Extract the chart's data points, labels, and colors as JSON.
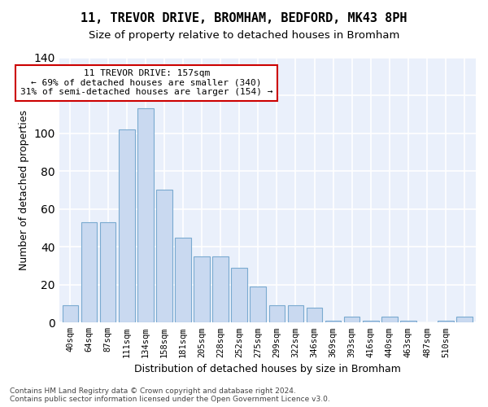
{
  "title": "11, TREVOR DRIVE, BROMHAM, BEDFORD, MK43 8PH",
  "subtitle": "Size of property relative to detached houses in Bromham",
  "xlabel": "Distribution of detached houses by size in Bromham",
  "ylabel": "Number of detached properties",
  "bar_values": [
    9,
    53,
    53,
    102,
    113,
    70,
    45,
    35,
    35,
    29,
    19,
    9,
    9,
    8,
    1,
    3,
    1,
    3,
    1,
    0,
    1,
    3
  ],
  "bar_labels": [
    "40sqm",
    "64sqm",
    "87sqm",
    "111sqm",
    "134sqm",
    "158sqm",
    "181sqm",
    "205sqm",
    "228sqm",
    "252sqm",
    "275sqm",
    "299sqm",
    "322sqm",
    "346sqm",
    "369sqm",
    "393sqm",
    "416sqm",
    "440sqm",
    "463sqm",
    "487sqm",
    "510sqm",
    ""
  ],
  "bar_color_default": "#c9d9f0",
  "bar_edge_color": "#7aaad0",
  "background_color": "#eaf0fb",
  "grid_color": "#ffffff",
  "annotation_text": "11 TREVOR DRIVE: 157sqm\n← 69% of detached houses are smaller (340)\n31% of semi-detached houses are larger (154) →",
  "annotation_box_color": "#ffffff",
  "annotation_box_edge": "#cc0000",
  "highlight_bar_index": 4,
  "ylim": [
    0,
    140
  ],
  "footer_line1": "Contains HM Land Registry data © Crown copyright and database right 2024.",
  "footer_line2": "Contains public sector information licensed under the Open Government Licence v3.0."
}
